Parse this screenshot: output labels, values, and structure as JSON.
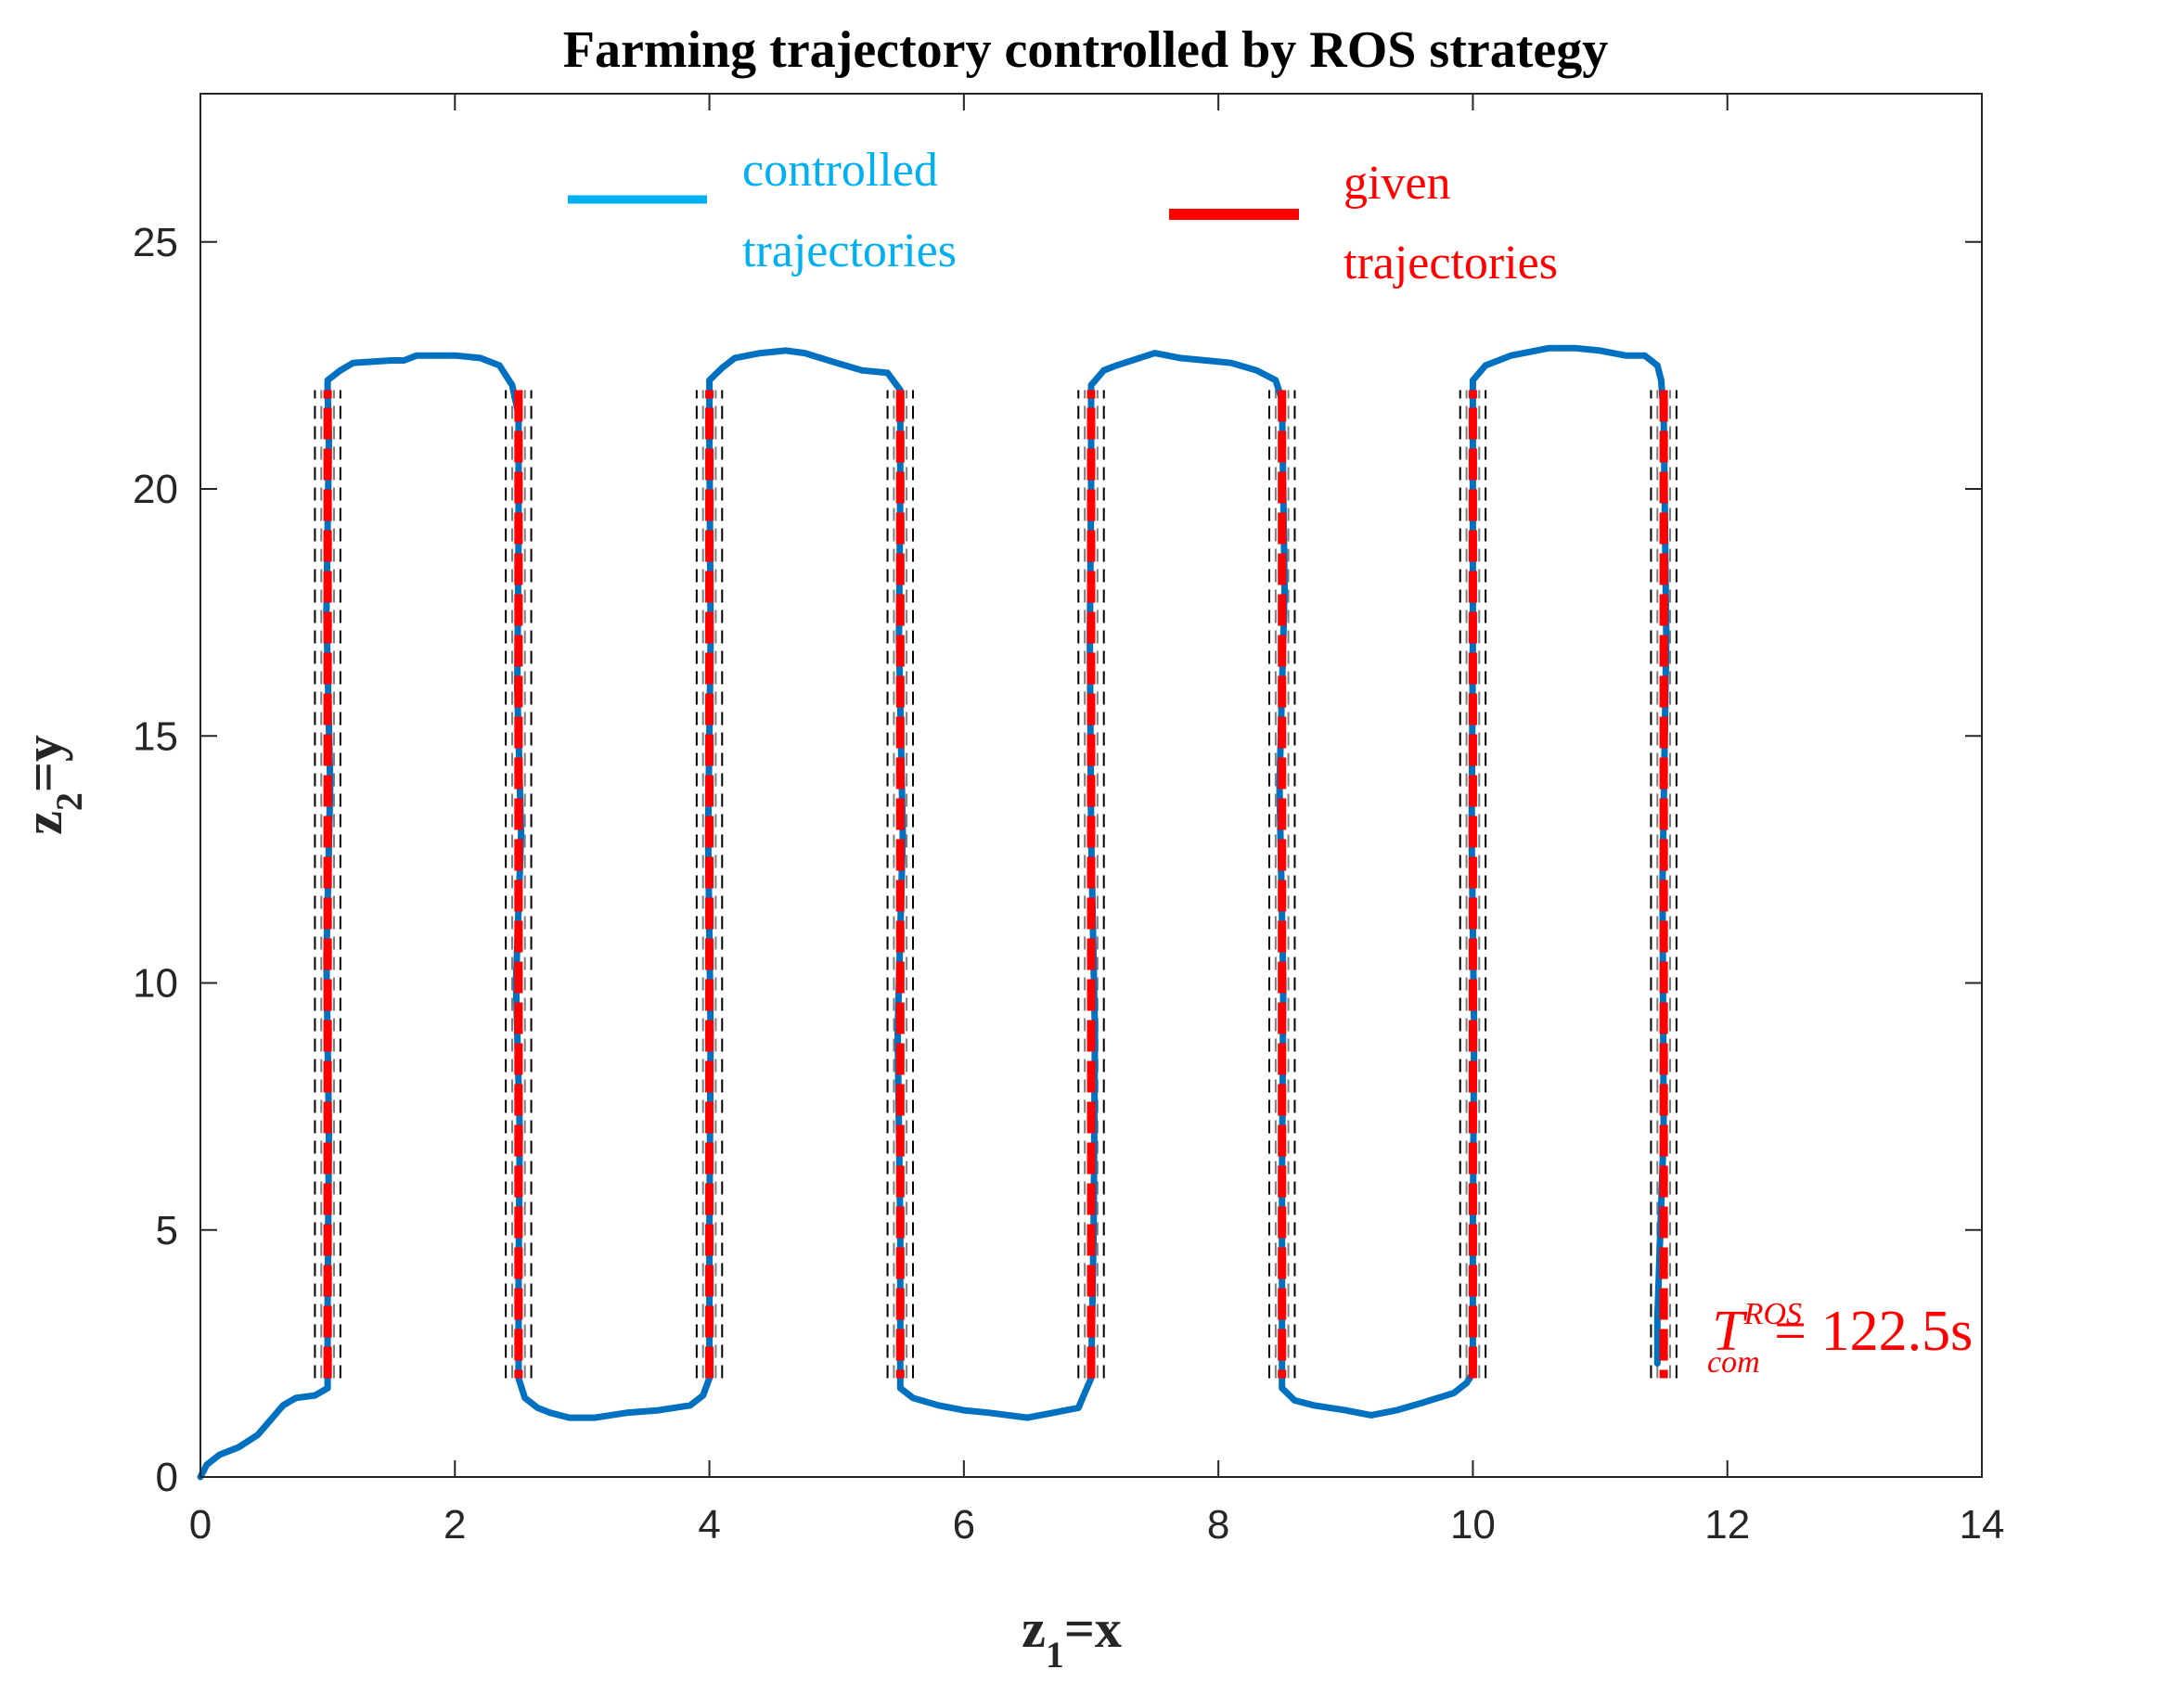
{
  "chart_data": {
    "type": "line",
    "title": "Farming trajectory controlled by ROS strategy",
    "xlabel": {
      "base": "z",
      "sub": "1",
      "rest": "=x"
    },
    "ylabel": {
      "base": "z",
      "sub": "2",
      "rest": "=y"
    },
    "xlim": [
      0,
      14
    ],
    "ylim": [
      0,
      28
    ],
    "xticks": [
      0,
      2,
      4,
      6,
      8,
      10,
      12,
      14
    ],
    "yticks": [
      0,
      5,
      10,
      15,
      20,
      25
    ],
    "grid": false,
    "legend": {
      "placement": "top",
      "entries": [
        {
          "line1": "controlled",
          "line2": "trajectories",
          "color": "#00b0f0"
        },
        {
          "line1": "given",
          "line2": "trajectories",
          "color": "#ff0000"
        }
      ]
    },
    "annotation": {
      "base": "T",
      "sup": "ROS",
      "sub": "com",
      "rest": " = 122.5s",
      "color": "#ff0000"
    },
    "colors": {
      "controlled_line": "#0070c0",
      "controlled_legend": "#00b0f0",
      "given": "#ff0000",
      "boundary": "#000000",
      "boundary_inner": "#7f7f7f"
    },
    "series": [
      {
        "name": "controlled trajectories",
        "x": [
          0,
          0.05,
          0.15,
          0.3,
          0.45,
          0.55,
          0.65,
          0.75,
          0.9,
          1.0,
          1.0,
          1.01,
          0.99,
          1.02,
          0.99,
          1.01,
          1.0,
          1.0,
          1.1,
          1.2,
          1.5,
          1.6,
          1.7,
          2.0,
          2.2,
          2.35,
          2.45,
          2.5,
          2.5,
          2.49,
          2.52,
          2.48,
          2.51,
          2.5,
          2.5,
          2.55,
          2.65,
          2.75,
          2.9,
          3.1,
          3.35,
          3.6,
          3.85,
          3.95,
          4.0,
          4.0,
          4.01,
          3.99,
          4.01,
          4.0,
          4.0,
          4.1,
          4.2,
          4.4,
          4.6,
          4.75,
          5.0,
          5.2,
          5.4,
          5.5,
          5.5,
          5.49,
          5.52,
          5.48,
          5.5,
          5.5,
          5.6,
          5.8,
          6.0,
          6.2,
          6.5,
          6.7,
          6.9,
          6.95,
          7.0,
          7.02,
          7.03,
          7.0,
          6.99,
          7.0,
          7.0,
          7.1,
          7.2,
          7.5,
          7.7,
          7.9,
          8.1,
          8.3,
          8.45,
          8.5,
          8.52,
          8.48,
          8.51,
          8.5,
          8.5,
          8.6,
          8.75,
          9.0,
          9.2,
          9.4,
          9.6,
          9.85,
          9.95,
          10.0,
          10.0,
          10.01,
          9.99,
          10.0,
          10.0,
          10.1,
          10.3,
          10.6,
          10.8,
          11.0,
          11.2,
          11.35,
          11.45,
          11.48,
          11.5,
          11.52,
          11.49,
          11.5,
          11.45,
          11.45
        ],
        "y": [
          0,
          0.25,
          0.45,
          0.6,
          0.85,
          1.15,
          1.45,
          1.6,
          1.65,
          1.8,
          3.5,
          7,
          10.5,
          14,
          17.5,
          21,
          22.0,
          22.2,
          22.4,
          22.55,
          22.6,
          22.6,
          22.7,
          22.7,
          22.65,
          22.5,
          22.1,
          21.5,
          19,
          16,
          13,
          10,
          7,
          4,
          2.0,
          1.6,
          1.4,
          1.3,
          1.2,
          1.2,
          1.3,
          1.35,
          1.45,
          1.65,
          2.0,
          5,
          9,
          13,
          17,
          21,
          22.2,
          22.45,
          22.65,
          22.75,
          22.8,
          22.75,
          22.55,
          22.4,
          22.35,
          22.0,
          20,
          17,
          13,
          9,
          5,
          1.8,
          1.6,
          1.45,
          1.35,
          1.3,
          1.2,
          1.3,
          1.4,
          1.7,
          2.0,
          5,
          9,
          13,
          17,
          20,
          22.1,
          22.4,
          22.5,
          22.75,
          22.65,
          22.6,
          22.55,
          22.4,
          22.2,
          21.8,
          18,
          14,
          10,
          6,
          1.8,
          1.55,
          1.45,
          1.35,
          1.25,
          1.35,
          1.5,
          1.7,
          1.9,
          2.1,
          5,
          9,
          13,
          17,
          22.2,
          22.5,
          22.7,
          22.85,
          22.85,
          22.8,
          22.7,
          22.7,
          22.5,
          22.2,
          21.5,
          17,
          12,
          7,
          3.2,
          2.3
        ]
      },
      {
        "name": "given trajectories",
        "x": [
          1,
          1,
          2.5,
          2.5,
          4,
          4,
          5.5,
          5.5,
          7,
          7,
          8.5,
          8.5,
          10,
          10,
          11.5,
          11.5
        ],
        "y": [
          2,
          22,
          22,
          2,
          2,
          22,
          22,
          2,
          2,
          22,
          22,
          2,
          2,
          22,
          22,
          2
        ]
      }
    ],
    "lanes": [
      1,
      2.5,
      4,
      5.5,
      7,
      8.5,
      10,
      11.5
    ],
    "lane_y": [
      2,
      22
    ],
    "boundary_offsets": [
      -0.1,
      -0.05,
      0.05,
      0.1
    ]
  }
}
